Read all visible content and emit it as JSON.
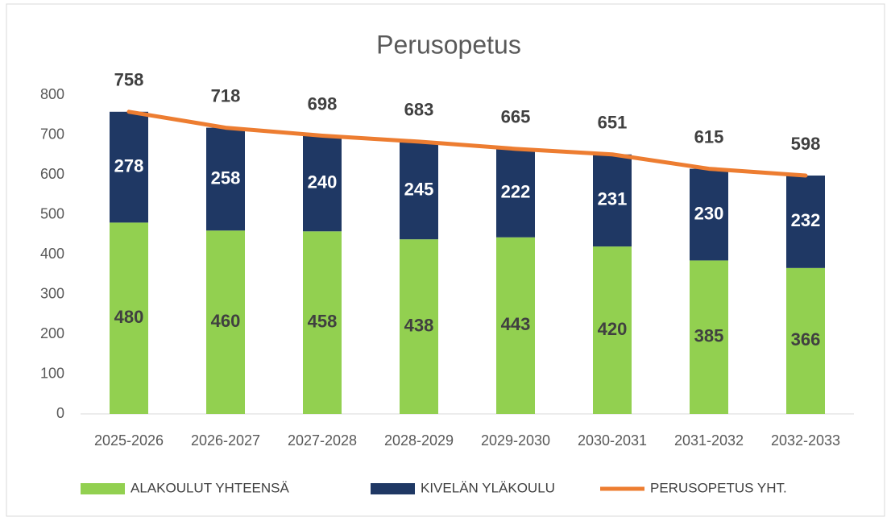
{
  "chart_data": {
    "type": "bar",
    "stacked": true,
    "title": "Perusopetus",
    "categories": [
      "2025-2026",
      "2026-2027",
      "2027-2028",
      "2028-2029",
      "2029-2030",
      "2030-2031",
      "2031-2032",
      "2032-2033"
    ],
    "series": [
      {
        "name": "ALAKOULUT YHTEENSÄ",
        "type": "bar",
        "color": "#92d050",
        "label_color": "#404040",
        "values": [
          480,
          460,
          458,
          438,
          443,
          420,
          385,
          366
        ]
      },
      {
        "name": "KIVELÄN YLÄKOULU",
        "type": "bar",
        "color": "#1f3864",
        "label_color": "#ffffff",
        "values": [
          278,
          258,
          240,
          245,
          222,
          231,
          230,
          232
        ]
      },
      {
        "name": "PERUSOPETUS YHT.",
        "type": "line",
        "color": "#ed7d31",
        "label_color": "#404040",
        "values": [
          758,
          718,
          698,
          683,
          665,
          651,
          615,
          598
        ]
      }
    ],
    "ylim": [
      0,
      800
    ],
    "yticks": [
      0,
      100,
      200,
      300,
      400,
      500,
      600,
      700,
      800
    ],
    "grid": false,
    "legend": "bottom"
  }
}
